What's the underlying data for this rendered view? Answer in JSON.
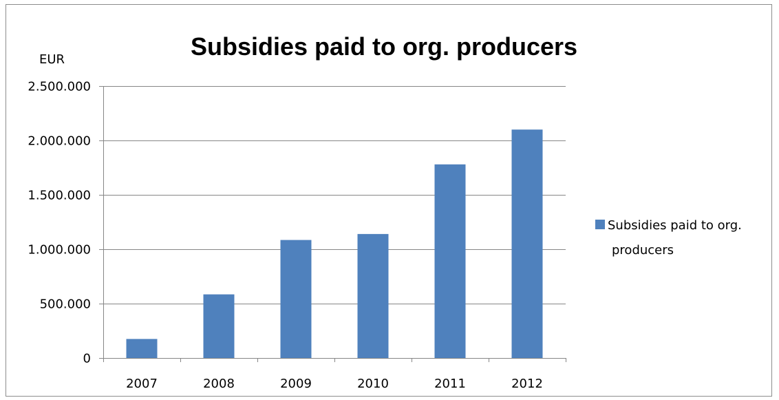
{
  "chart_data": {
    "type": "bar",
    "title": "Subsidies paid to org. producers",
    "ylabel": "EUR",
    "xlabel": "",
    "categories": [
      "2007",
      "2008",
      "2009",
      "2010",
      "2011",
      "2012"
    ],
    "series": [
      {
        "name": "Subsidies paid to org. producers",
        "legend_lines": [
          "Subsidies paid to org.",
          "producers"
        ],
        "values": [
          175000,
          585000,
          1085000,
          1140000,
          1780000,
          2100000
        ],
        "color": "#4f81bd"
      }
    ],
    "ylim": [
      0,
      2500000
    ],
    "yticks": [
      0,
      500000,
      1000000,
      1500000,
      2000000,
      2500000
    ],
    "ytick_labels": [
      "0",
      "500.000",
      "1.000.000",
      "1.500.000",
      "2.000.000",
      "2.500.000"
    ],
    "grid": true,
    "legend_position": "right"
  }
}
